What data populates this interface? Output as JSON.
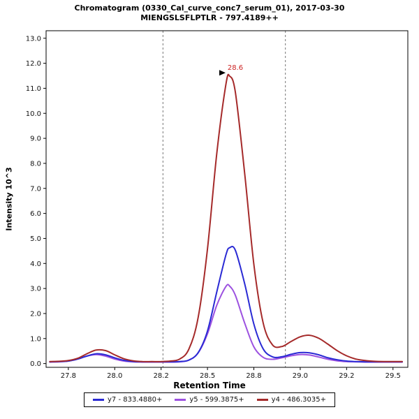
{
  "chart_data": {
    "type": "line",
    "title": "Chromatogram (0330_Cal_curve_conc7_serum_01), 2017-03-30",
    "subtitle": "MIENGSLSFLPTLR - 797.4189++",
    "xlabel": "Retention Time",
    "ylabel": "Intensity 10^3",
    "xlim": [
      27.63,
      29.58
    ],
    "ylim": [
      -0.15,
      13.3
    ],
    "grid": false,
    "legend_position": "bottom",
    "boundary_color": "#777777",
    "integration_boundaries": [
      28.26,
      28.92
    ],
    "peak_annotation": {
      "text": "28.6",
      "x": 28.62,
      "y": 11.48,
      "color": "#CC2222"
    },
    "x_ticks": [
      {
        "value": 27.75,
        "label": "27.8"
      },
      {
        "value": 28.0,
        "label": "28.0"
      },
      {
        "value": 28.25,
        "label": "28.2"
      },
      {
        "value": 28.5,
        "label": "28.5"
      },
      {
        "value": 28.75,
        "label": "28.8"
      },
      {
        "value": 29.0,
        "label": "29.0"
      },
      {
        "value": 29.25,
        "label": "29.2"
      },
      {
        "value": 29.5,
        "label": "29.5"
      }
    ],
    "y_ticks": [
      {
        "value": 0,
        "label": "0.0"
      },
      {
        "value": 1,
        "label": "1.0"
      },
      {
        "value": 2,
        "label": "2.0"
      },
      {
        "value": 3,
        "label": "3.0"
      },
      {
        "value": 4,
        "label": "4.0"
      },
      {
        "value": 5,
        "label": "5.0"
      },
      {
        "value": 6,
        "label": "6.0"
      },
      {
        "value": 7,
        "label": "7.0"
      },
      {
        "value": 8,
        "label": "8.0"
      },
      {
        "value": 9,
        "label": "9.0"
      },
      {
        "value": 10,
        "label": "10.0"
      },
      {
        "value": 11,
        "label": "11.0"
      },
      {
        "value": 12,
        "label": "12.0"
      },
      {
        "value": 13,
        "label": "13.0"
      }
    ],
    "x": [
      27.65,
      27.7,
      27.75,
      27.8,
      27.85,
      27.9,
      27.95,
      28.0,
      28.05,
      28.1,
      28.15,
      28.2,
      28.25,
      28.3,
      28.35,
      28.4,
      28.45,
      28.5,
      28.55,
      28.6,
      28.62,
      28.65,
      28.7,
      28.75,
      28.8,
      28.85,
      28.9,
      28.95,
      29.0,
      29.05,
      29.1,
      29.15,
      29.2,
      29.25,
      29.3,
      29.35,
      29.4,
      29.45,
      29.5,
      29.55
    ],
    "series": [
      {
        "id": "y7",
        "name": "y7 - 833.4880+",
        "color": "#2A2AD4",
        "values": [
          0.07,
          0.08,
          0.1,
          0.18,
          0.3,
          0.39,
          0.35,
          0.23,
          0.13,
          0.08,
          0.07,
          0.07,
          0.07,
          0.07,
          0.08,
          0.14,
          0.44,
          1.3,
          2.86,
          4.36,
          4.63,
          4.53,
          3.21,
          1.58,
          0.59,
          0.27,
          0.27,
          0.37,
          0.44,
          0.43,
          0.35,
          0.23,
          0.15,
          0.1,
          0.08,
          0.07,
          0.07,
          0.07,
          0.07,
          0.07
        ]
      },
      {
        "id": "y5",
        "name": "y5 - 599.3875+",
        "color": "#9C51E0",
        "values": [
          0.06,
          0.07,
          0.1,
          0.18,
          0.3,
          0.36,
          0.3,
          0.18,
          0.1,
          0.07,
          0.06,
          0.06,
          0.06,
          0.06,
          0.07,
          0.14,
          0.43,
          1.19,
          2.33,
          3.09,
          3.09,
          2.73,
          1.63,
          0.67,
          0.25,
          0.17,
          0.23,
          0.31,
          0.36,
          0.34,
          0.26,
          0.17,
          0.11,
          0.08,
          0.07,
          0.06,
          0.06,
          0.06,
          0.06,
          0.06
        ]
      },
      {
        "id": "y4",
        "name": "y4 - 486.3035+",
        "color": "#A52A2A",
        "values": [
          0.08,
          0.09,
          0.12,
          0.21,
          0.39,
          0.54,
          0.52,
          0.35,
          0.19,
          0.11,
          0.08,
          0.08,
          0.08,
          0.1,
          0.18,
          0.58,
          1.85,
          4.58,
          8.39,
          11.19,
          11.48,
          10.85,
          7.64,
          3.97,
          1.63,
          0.75,
          0.68,
          0.88,
          1.07,
          1.13,
          1.01,
          0.77,
          0.51,
          0.31,
          0.18,
          0.12,
          0.09,
          0.08,
          0.08,
          0.08
        ]
      }
    ],
    "draw_order": [
      "y5",
      "y7",
      "y4"
    ]
  }
}
